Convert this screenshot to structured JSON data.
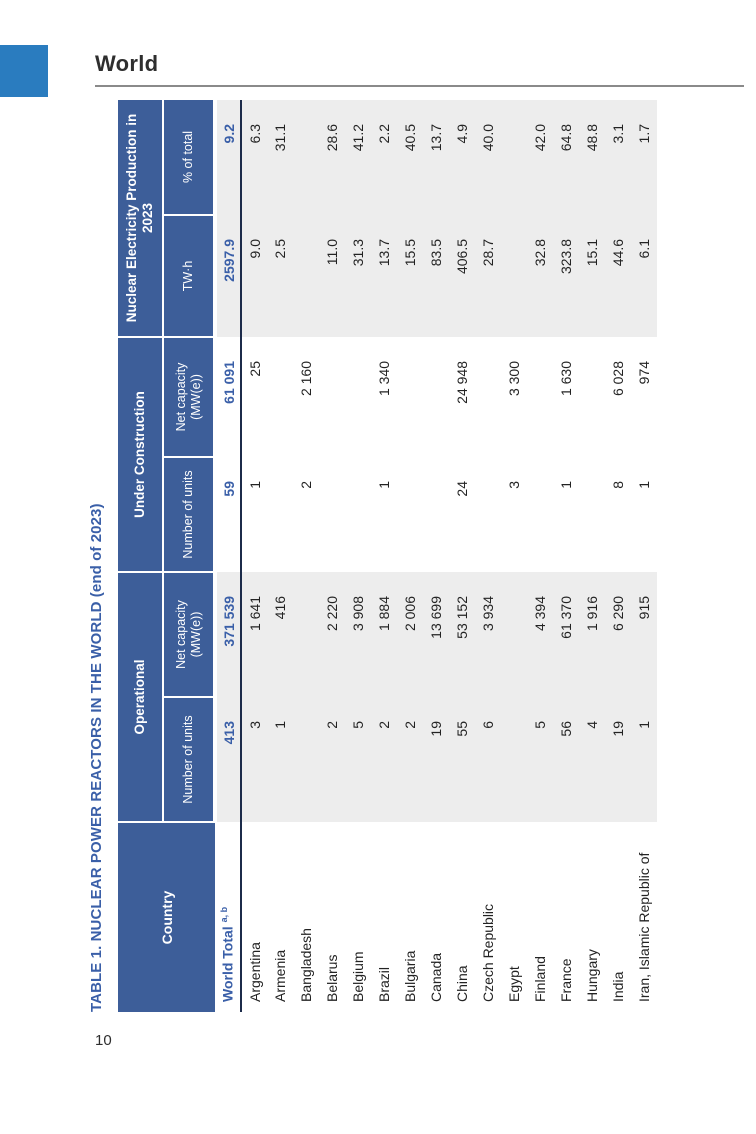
{
  "page": {
    "section_label": "World",
    "page_number": "10"
  },
  "colors": {
    "header_blue": "#3d5e99",
    "accent_blue_text": "#3a5fa8",
    "chapter_tab_blue": "#2a7cbf",
    "shade_gray": "#ededed",
    "total_rule_dark": "#1c2b4a"
  },
  "table": {
    "title": "TABLE 1. NUCLEAR POWER REACTORS IN THE WORLD (end of 2023)",
    "col_groups": [
      "Country",
      "Operational",
      "Under Construction",
      "Nuclear Electricity Production in 2023"
    ],
    "sub_headers": [
      "Number of units",
      "Net capacity (MW(e))",
      "Number of units",
      "Net capacity (MW(e))",
      "TW·h",
      "% of total"
    ],
    "world_total": {
      "country": "World Total",
      "sup": "a, b",
      "values": [
        "413",
        "371 539",
        "59",
        "61 091",
        "2597.9",
        "9.2"
      ]
    },
    "rows": [
      {
        "country": "Argentina",
        "op_units": "3",
        "op_cap": "1 641",
        "uc_units": "1",
        "uc_cap": "25",
        "twh": "9.0",
        "pct": "6.3"
      },
      {
        "country": "Armenia",
        "op_units": "1",
        "op_cap": "416",
        "uc_units": "",
        "uc_cap": "",
        "twh": "2.5",
        "pct": "31.1"
      },
      {
        "country": "Bangladesh",
        "op_units": "",
        "op_cap": "",
        "uc_units": "2",
        "uc_cap": "2 160",
        "twh": "",
        "pct": ""
      },
      {
        "country": "Belarus",
        "op_units": "2",
        "op_cap": "2 220",
        "uc_units": "",
        "uc_cap": "",
        "twh": "11.0",
        "pct": "28.6"
      },
      {
        "country": "Belgium",
        "op_units": "5",
        "op_cap": "3 908",
        "uc_units": "",
        "uc_cap": "",
        "twh": "31.3",
        "pct": "41.2"
      },
      {
        "country": "Brazil",
        "op_units": "2",
        "op_cap": "1 884",
        "uc_units": "1",
        "uc_cap": "1 340",
        "twh": "13.7",
        "pct": "2.2"
      },
      {
        "country": "Bulgaria",
        "op_units": "2",
        "op_cap": "2 006",
        "uc_units": "",
        "uc_cap": "",
        "twh": "15.5",
        "pct": "40.5"
      },
      {
        "country": "Canada",
        "op_units": "19",
        "op_cap": "13 699",
        "uc_units": "",
        "uc_cap": "",
        "twh": "83.5",
        "pct": "13.7"
      },
      {
        "country": "China",
        "op_units": "55",
        "op_cap": "53 152",
        "uc_units": "24",
        "uc_cap": "24 948",
        "twh": "406.5",
        "pct": "4.9"
      },
      {
        "country": "Czech Republic",
        "op_units": "6",
        "op_cap": "3 934",
        "uc_units": "",
        "uc_cap": "",
        "twh": "28.7",
        "pct": "40.0"
      },
      {
        "country": "Egypt",
        "op_units": "",
        "op_cap": "",
        "uc_units": "3",
        "uc_cap": "3 300",
        "twh": "",
        "pct": ""
      },
      {
        "country": "Finland",
        "op_units": "5",
        "op_cap": "4 394",
        "uc_units": "",
        "uc_cap": "",
        "twh": "32.8",
        "pct": "42.0"
      },
      {
        "country": "France",
        "op_units": "56",
        "op_cap": "61 370",
        "uc_units": "1",
        "uc_cap": "1 630",
        "twh": "323.8",
        "pct": "64.8"
      },
      {
        "country": "Hungary",
        "op_units": "4",
        "op_cap": "1 916",
        "uc_units": "",
        "uc_cap": "",
        "twh": "15.1",
        "pct": "48.8"
      },
      {
        "country": "India",
        "op_units": "19",
        "op_cap": "6 290",
        "uc_units": "8",
        "uc_cap": "6 028",
        "twh": "44.6",
        "pct": "3.1"
      },
      {
        "country": "Iran, Islamic Republic of",
        "op_units": "1",
        "op_cap": "915",
        "uc_units": "1",
        "uc_cap": "974",
        "twh": "6.1",
        "pct": "1.7"
      }
    ]
  }
}
